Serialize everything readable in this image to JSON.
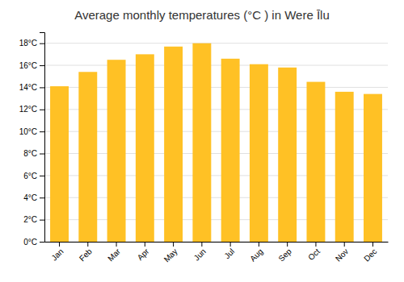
{
  "chart_data": {
    "type": "bar",
    "title": "Average monthly temperatures (°C ) in Were Īlu",
    "categories": [
      "Jan",
      "Feb",
      "Mar",
      "Apr",
      "May",
      "Jun",
      "Jul",
      "Aug",
      "Sep",
      "Oct",
      "Nov",
      "Dec"
    ],
    "values": [
      14.1,
      15.4,
      16.5,
      17.0,
      17.7,
      18.0,
      16.6,
      16.1,
      15.8,
      14.5,
      13.6,
      13.4
    ],
    "color": "#FFC125",
    "ylim": [
      0,
      19
    ],
    "yticks": [
      {
        "value": 0,
        "label": "0°C"
      },
      {
        "value": 2,
        "label": "2°C"
      },
      {
        "value": 4,
        "label": "4°C"
      },
      {
        "value": 6,
        "label": "6°C"
      },
      {
        "value": 8,
        "label": "8°C"
      },
      {
        "value": 10,
        "label": "10°C"
      },
      {
        "value": 12,
        "label": "12°C"
      },
      {
        "value": 14,
        "label": "14°C"
      },
      {
        "value": 16,
        "label": "16°C"
      },
      {
        "value": 18,
        "label": "18°C"
      }
    ],
    "grid": true
  }
}
